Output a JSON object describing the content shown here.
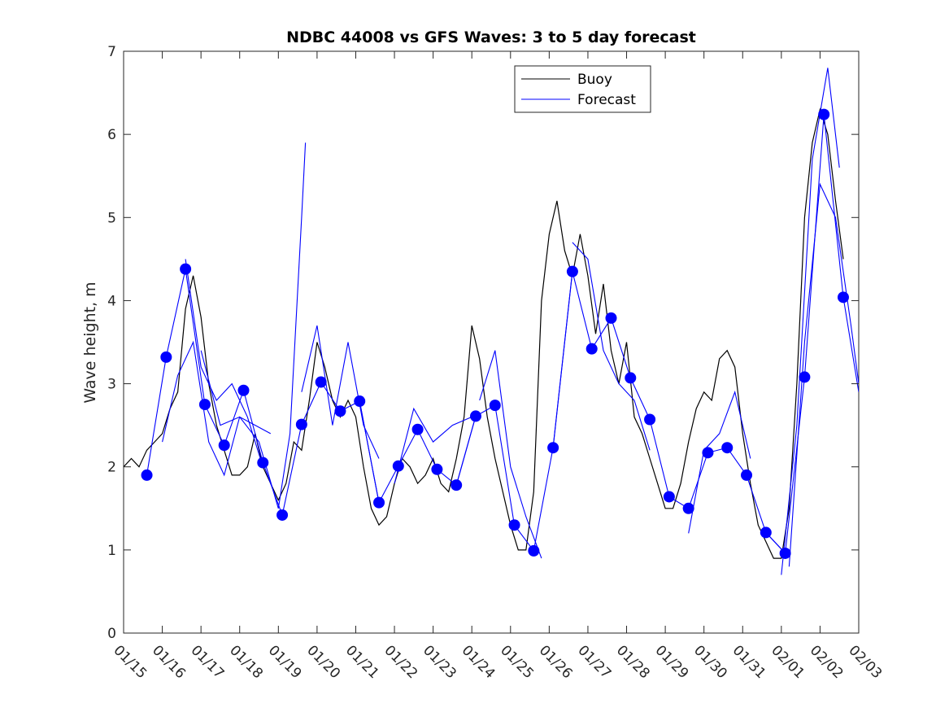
{
  "chart_data": {
    "type": "line",
    "title": "NDBC 44008 vs GFS Waves: 3 to 5 day forecast",
    "xlabel": "",
    "ylabel": "Wave height, m",
    "ylim": [
      0,
      7
    ],
    "xlim_days": [
      0,
      19
    ],
    "grid": false,
    "legend_position": "top-center-right",
    "legend": [
      {
        "name": "Buoy",
        "color": "#000000"
      },
      {
        "name": "Forecast",
        "color": "#0000ff"
      }
    ],
    "y_ticks": [
      "0",
      "1",
      "2",
      "3",
      "4",
      "5",
      "6",
      "7"
    ],
    "x_tick_labels": [
      "01/15",
      "01/16",
      "01/17",
      "01/18",
      "01/19",
      "01/20",
      "01/21",
      "01/22",
      "01/23",
      "01/24",
      "01/25",
      "01/26",
      "01/27",
      "01/28",
      "01/29",
      "01/30",
      "01/31",
      "02/01",
      "02/02",
      "02/03"
    ],
    "x_unit": "days since 01/15",
    "series": [
      {
        "name": "Buoy",
        "color": "#000000",
        "x": [
          0,
          0.2,
          0.4,
          0.6,
          0.8,
          1.0,
          1.2,
          1.4,
          1.6,
          1.8,
          2.0,
          2.2,
          2.4,
          2.6,
          2.8,
          3.0,
          3.2,
          3.4,
          3.6,
          3.8,
          4.0,
          4.2,
          4.4,
          4.6,
          4.8,
          5.0,
          5.2,
          5.4,
          5.6,
          5.8,
          6.0,
          6.2,
          6.4,
          6.6,
          6.8,
          7.0,
          7.2,
          7.4,
          7.6,
          7.8,
          8.0,
          8.2,
          8.4,
          8.6,
          8.8,
          9.0,
          9.2,
          9.4,
          9.6,
          9.8,
          10.0,
          10.2,
          10.4,
          10.6,
          10.8,
          11.0,
          11.2,
          11.4,
          11.6,
          11.8,
          12.0,
          12.2,
          12.4,
          12.6,
          12.8,
          13.0,
          13.2,
          13.4,
          13.6,
          13.8,
          14.0,
          14.2,
          14.4,
          14.6,
          14.8,
          15.0,
          15.2,
          15.4,
          15.6,
          15.8,
          16.0,
          16.2,
          16.4,
          16.6,
          16.8,
          17.0,
          17.2,
          17.4,
          17.6,
          17.8,
          18.0,
          18.2,
          18.4,
          18.6
        ],
        "values": [
          2.0,
          2.1,
          2.0,
          2.2,
          2.3,
          2.4,
          2.7,
          2.9,
          3.9,
          4.3,
          3.8,
          3.0,
          2.5,
          2.2,
          1.9,
          1.9,
          2.0,
          2.4,
          2.0,
          1.8,
          1.6,
          1.8,
          2.3,
          2.2,
          2.8,
          3.5,
          3.2,
          2.8,
          2.6,
          2.8,
          2.6,
          2.0,
          1.5,
          1.3,
          1.4,
          1.8,
          2.1,
          2.0,
          1.8,
          1.9,
          2.1,
          1.8,
          1.7,
          2.1,
          2.6,
          3.7,
          3.3,
          2.6,
          2.1,
          1.7,
          1.3,
          1.0,
          1.0,
          1.7,
          4.0,
          4.8,
          5.2,
          4.6,
          4.3,
          4.8,
          4.3,
          3.6,
          4.2,
          3.4,
          3.0,
          3.5,
          2.6,
          2.4,
          2.1,
          1.8,
          1.5,
          1.5,
          1.8,
          2.3,
          2.7,
          2.9,
          2.8,
          3.3,
          3.4,
          3.2,
          2.4,
          1.8,
          1.3,
          1.1,
          0.9,
          0.9,
          1.5,
          3.0,
          5.0,
          5.9,
          6.3,
          6.0,
          5.2,
          4.5
        ]
      },
      {
        "name": "Forecast",
        "color": "#0000ff",
        "runs": [
          {
            "x": [
              0.6,
              1.1,
              1.6,
              2.1,
              2.6,
              3.1,
              3.6
            ],
            "values": [
              1.9,
              3.32,
              4.38,
              2.75,
              2.26,
              2.92,
              2.05
            ]
          },
          {
            "x": [
              1.0,
              1.4,
              1.8,
              2.2,
              2.6,
              3.0,
              3.4,
              3.8
            ],
            "values": [
              2.3,
              3.1,
              3.5,
              2.3,
              1.9,
              2.6,
              2.5,
              2.4
            ]
          },
          {
            "x": [
              1.6,
              2.0,
              2.4,
              2.8,
              3.2,
              3.6
            ],
            "values": [
              4.5,
              3.2,
              2.8,
              3.0,
              2.6,
              2.0
            ]
          },
          {
            "x": [
              2.0,
              2.5,
              3.0,
              3.5,
              4.0,
              4.3,
              4.6,
              4.7
            ],
            "values": [
              3.4,
              2.5,
              2.6,
              2.3,
              1.5,
              2.4,
              5.0,
              5.9
            ]
          },
          {
            "x": [
              3.6,
              4.1,
              4.6,
              5.1,
              5.6,
              6.1,
              6.6
            ],
            "values": [
              2.05,
              1.42,
              2.51,
              3.02,
              2.67,
              2.79,
              1.57
            ]
          },
          {
            "x": [
              4.6,
              5.0,
              5.4,
              5.8,
              6.2,
              6.6
            ],
            "values": [
              2.9,
              3.7,
              2.5,
              3.5,
              2.5,
              2.1
            ]
          },
          {
            "x": [
              6.1,
              6.6,
              7.1,
              7.6,
              8.1,
              8.6,
              9.1
            ],
            "values": [
              2.79,
              1.57,
              2.01,
              2.45,
              1.97,
              1.78,
              2.61
            ]
          },
          {
            "x": [
              7.0,
              7.5,
              8.0,
              8.5,
              9.0
            ],
            "values": [
              1.8,
              2.7,
              2.3,
              2.5,
              2.6
            ]
          },
          {
            "x": [
              8.6,
              9.1,
              9.6,
              10.1,
              10.6,
              11.1,
              11.6
            ],
            "values": [
              1.78,
              2.61,
              2.74,
              1.3,
              0.99,
              2.23,
              4.35
            ]
          },
          {
            "x": [
              9.2,
              9.6,
              10.0,
              10.4,
              10.8
            ],
            "values": [
              2.8,
              3.4,
              2.0,
              1.4,
              0.9
            ]
          },
          {
            "x": [
              11.1,
              11.6,
              12.1,
              12.6,
              13.1,
              13.6,
              14.1
            ],
            "values": [
              2.23,
              4.35,
              3.42,
              3.79,
              3.07,
              2.57,
              1.64
            ]
          },
          {
            "x": [
              11.6,
              12.0,
              12.4,
              12.8,
              13.2,
              13.6
            ],
            "values": [
              4.7,
              4.5,
              3.4,
              3.0,
              2.8,
              2.2
            ]
          },
          {
            "x": [
              14.1,
              14.6,
              15.1,
              15.6,
              16.1,
              16.6,
              17.1
            ],
            "values": [
              1.64,
              1.5,
              2.17,
              2.23,
              1.9,
              1.21,
              0.96
            ]
          },
          {
            "x": [
              14.6,
              15.0,
              15.4,
              15.8,
              16.2
            ],
            "values": [
              1.2,
              2.2,
              2.4,
              2.9,
              2.1
            ]
          },
          {
            "x": [
              16.6,
              17.1,
              17.6,
              18.1,
              18.6,
              19.0
            ],
            "values": [
              1.21,
              0.96,
              3.08,
              6.24,
              4.04,
              2.9
            ]
          },
          {
            "x": [
              17.0,
              17.4,
              17.8,
              18.2,
              18.5
            ],
            "values": [
              0.7,
              2.5,
              5.7,
              6.8,
              5.6
            ]
          },
          {
            "x": [
              17.2,
              17.6,
              18.0,
              18.4,
              18.8,
              19.0
            ],
            "values": [
              0.8,
              3.5,
              5.4,
              5.0,
              3.7,
              3.0
            ]
          }
        ],
        "markers": {
          "x": [
            0.6,
            1.1,
            1.6,
            2.1,
            2.6,
            3.1,
            3.6,
            4.1,
            4.6,
            5.1,
            5.6,
            6.1,
            6.6,
            7.1,
            7.6,
            8.1,
            8.6,
            9.1,
            9.6,
            10.1,
            10.6,
            11.1,
            11.6,
            12.1,
            12.6,
            13.1,
            13.6,
            14.1,
            14.6,
            15.1,
            15.6,
            16.1,
            16.6,
            17.1,
            17.6,
            18.1,
            18.6
          ],
          "values": [
            1.9,
            3.32,
            4.38,
            2.75,
            2.26,
            2.92,
            2.05,
            1.42,
            2.51,
            3.02,
            2.67,
            2.79,
            1.57,
            2.01,
            2.45,
            1.97,
            1.78,
            2.61,
            2.74,
            1.3,
            0.99,
            2.23,
            4.35,
            3.42,
            3.79,
            3.07,
            2.57,
            1.64,
            1.5,
            2.17,
            2.23,
            1.9,
            1.21,
            0.96,
            3.08,
            6.24,
            4.04
          ]
        }
      }
    ]
  }
}
